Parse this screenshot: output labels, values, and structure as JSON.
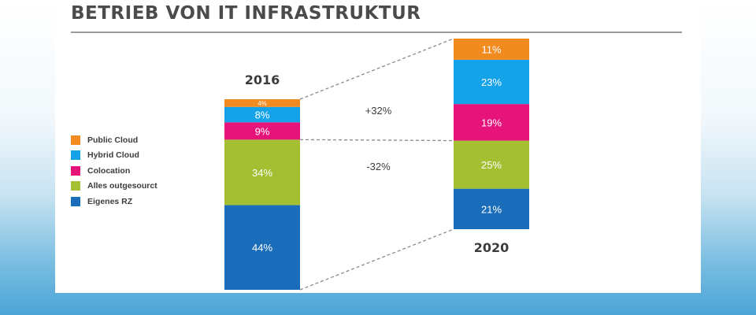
{
  "title": "BETRIEB VON IT INFRASTRUKTUR",
  "colors": {
    "public_cloud": "#f18a1f",
    "hybrid_cloud": "#14a2e8",
    "colocation": "#e5137a",
    "alles_outgesourct": "#a5bf33",
    "eigenes_rz": "#1a6dba"
  },
  "legend": [
    {
      "label": "Public Cloud",
      "color": "#f18a1f"
    },
    {
      "label": "Hybrid Cloud",
      "color": "#14a2e8"
    },
    {
      "label": "Colocation",
      "color": "#e5137a"
    },
    {
      "label": "Alles outgesourct",
      "color": "#a5bf33"
    },
    {
      "label": "Eigenes RZ",
      "color": "#1a6dba"
    }
  ],
  "chart_data": {
    "type": "bar",
    "stacked": true,
    "title": "BETRIEB VON IT INFRASTRUKTUR",
    "categories": [
      "2016",
      "2020"
    ],
    "series": [
      {
        "name": "Eigenes RZ",
        "values": [
          44,
          21
        ],
        "labels": [
          "44%",
          "21%"
        ],
        "color": "#1a6dba"
      },
      {
        "name": "Alles outgesourct",
        "values": [
          34,
          25
        ],
        "labels": [
          "34%",
          "25%"
        ],
        "color": "#a5bf33"
      },
      {
        "name": "Colocation",
        "values": [
          9,
          19
        ],
        "labels": [
          "9%",
          "19%"
        ],
        "color": "#e5137a"
      },
      {
        "name": "Hybrid Cloud",
        "values": [
          8,
          23
        ],
        "labels": [
          "8%",
          "23%"
        ],
        "color": "#14a2e8"
      },
      {
        "name": "Public Cloud",
        "values": [
          4,
          11
        ],
        "labels": [
          "4%",
          "11%"
        ],
        "color": "#f18a1f"
      }
    ],
    "annotations": [
      "+32%",
      "-32%"
    ],
    "legend_position": "left",
    "grid": false
  }
}
